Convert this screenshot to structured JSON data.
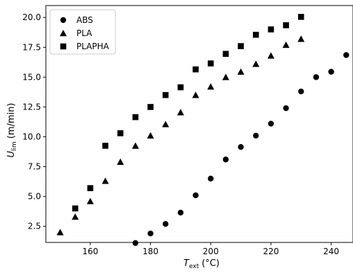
{
  "chart_data": {
    "type": "scatter",
    "xlabel": "T_ext (°C)",
    "xlabel_main": "T",
    "xlabel_sub": "ext",
    "xlabel_unit": "(°C)",
    "ylabel": "U_lim (m/min)",
    "ylabel_main": "U",
    "ylabel_sub": "lim",
    "ylabel_unit": "(m/min)",
    "xlim": [
      145.25,
      247.25
    ],
    "ylim": [
      1.15,
      21.0
    ],
    "xticks": [
      160,
      180,
      200,
      220,
      240
    ],
    "yticks": [
      2.5,
      5.0,
      7.5,
      10.0,
      12.5,
      15.0,
      17.5,
      20.0
    ],
    "xtick_labels": [
      "160",
      "180",
      "200",
      "220",
      "240"
    ],
    "ytick_labels": [
      "2.5",
      "5.0",
      "7.5",
      "10.0",
      "12.5",
      "15.0",
      "17.5",
      "20.0"
    ],
    "grid": false,
    "legend_position": "top-left",
    "series": [
      {
        "name": "ABS",
        "marker": "circle",
        "color": "#000000",
        "points": [
          {
            "x": 175,
            "y": 1.1
          },
          {
            "x": 180,
            "y": 1.9
          },
          {
            "x": 185,
            "y": 2.7
          },
          {
            "x": 190,
            "y": 3.65
          },
          {
            "x": 195,
            "y": 5.1
          },
          {
            "x": 200,
            "y": 6.5
          },
          {
            "x": 205,
            "y": 8.1
          },
          {
            "x": 210,
            "y": 9.15
          },
          {
            "x": 215,
            "y": 10.1
          },
          {
            "x": 220,
            "y": 11.1
          },
          {
            "x": 225,
            "y": 12.4
          },
          {
            "x": 230,
            "y": 13.8
          },
          {
            "x": 235,
            "y": 15.0
          },
          {
            "x": 240,
            "y": 15.45
          },
          {
            "x": 245,
            "y": 16.85
          }
        ]
      },
      {
        "name": "PLA",
        "marker": "triangle",
        "color": "#000000",
        "points": [
          {
            "x": 150,
            "y": 2.0
          },
          {
            "x": 155,
            "y": 3.3
          },
          {
            "x": 160,
            "y": 4.6
          },
          {
            "x": 165,
            "y": 6.3
          },
          {
            "x": 170,
            "y": 7.9
          },
          {
            "x": 175,
            "y": 9.25
          },
          {
            "x": 180,
            "y": 10.1
          },
          {
            "x": 185,
            "y": 11.05
          },
          {
            "x": 190,
            "y": 12.05
          },
          {
            "x": 195,
            "y": 13.5
          },
          {
            "x": 200,
            "y": 14.2
          },
          {
            "x": 205,
            "y": 15.0
          },
          {
            "x": 210,
            "y": 15.45
          },
          {
            "x": 215,
            "y": 16.1
          },
          {
            "x": 220,
            "y": 16.8
          },
          {
            "x": 225,
            "y": 17.7
          },
          {
            "x": 230,
            "y": 18.2
          }
        ]
      },
      {
        "name": "PLAPHA",
        "marker": "square",
        "color": "#000000",
        "points": [
          {
            "x": 155,
            "y": 4.0
          },
          {
            "x": 160,
            "y": 5.7
          },
          {
            "x": 165,
            "y": 9.25
          },
          {
            "x": 170,
            "y": 10.3
          },
          {
            "x": 175,
            "y": 11.65
          },
          {
            "x": 180,
            "y": 12.5
          },
          {
            "x": 185,
            "y": 13.5
          },
          {
            "x": 190,
            "y": 14.15
          },
          {
            "x": 195,
            "y": 15.65
          },
          {
            "x": 200,
            "y": 16.15
          },
          {
            "x": 205,
            "y": 16.95
          },
          {
            "x": 210,
            "y": 17.6
          },
          {
            "x": 215,
            "y": 18.55
          },
          {
            "x": 220,
            "y": 19.0
          },
          {
            "x": 225,
            "y": 19.35
          },
          {
            "x": 230,
            "y": 20.05
          }
        ]
      }
    ]
  }
}
